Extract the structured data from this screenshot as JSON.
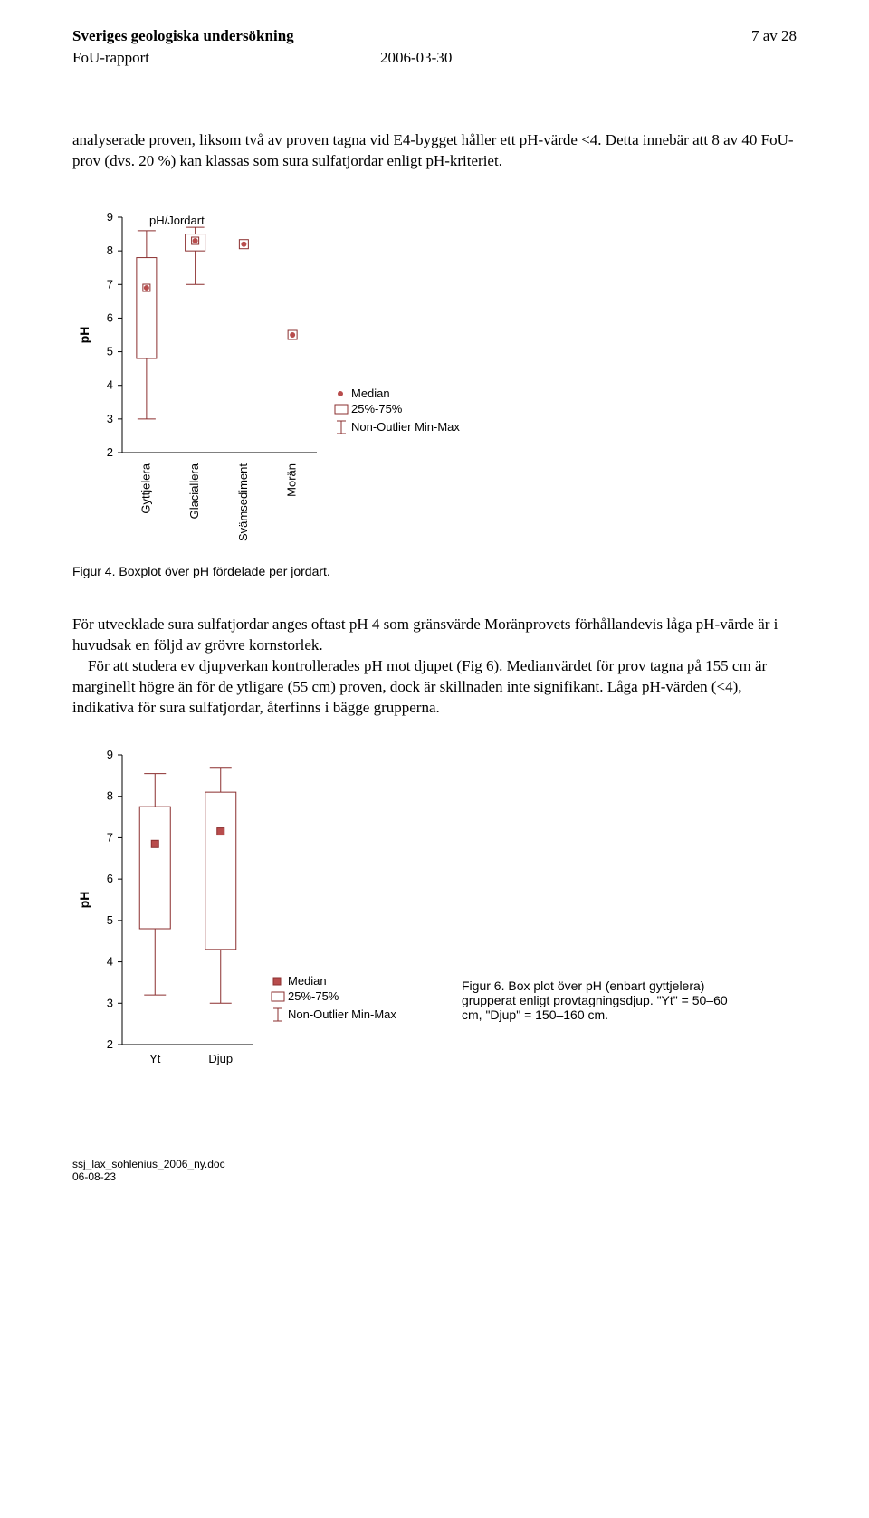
{
  "header": {
    "org": "Sveriges geologiska undersökning",
    "pagenum": "7 av 28",
    "report_type": "FoU-rapport",
    "date": "2006-03-30"
  },
  "para1": "analyserade proven, liksom två av proven tagna vid E4-bygget håller ett pH-värde <4. Detta innebär att 8 av 40 FoU-prov (dvs. 20 %) kan klassas som sura sulfatjordar enligt pH-kriteriet.",
  "chart1": {
    "title": "pH/Jordart",
    "ylabel": "pH",
    "ylim": [
      2,
      9
    ],
    "yticks": [
      2,
      3,
      4,
      5,
      6,
      7,
      8,
      9
    ],
    "categories": [
      "Gyttjelera",
      "Glaciallera",
      "Svämsediment",
      "Morän"
    ],
    "boxes": [
      {
        "min": 3.0,
        "q1": 4.8,
        "median": 6.9,
        "q3": 7.8,
        "max": 8.6
      },
      {
        "min": 7.0,
        "q1": 8.0,
        "median": 8.3,
        "q3": 8.5,
        "max": 8.7
      },
      {
        "outlier": 8.2
      },
      {
        "outlier": 5.5
      }
    ],
    "legend": [
      "Median",
      "25%-75%",
      "Non-Outlier Min-Max"
    ],
    "colors": {
      "stroke": "#8b2f2f",
      "markerFill": "#b84c4c",
      "boxFill": "none",
      "grid": "#ffffff"
    }
  },
  "caption1": "Figur 4. Boxplot över pH fördelade per jordart.",
  "para2": "För utvecklade sura sulfatjordar anges oftast pH 4 som gränsvärde Moränprovets förhållandevis låga pH-värde är i huvudsak en följd av grövre kornstorlek.",
  "para2indent": "    För att studera ev djupverkan kontrollerades pH mot djupet (Fig 6). Medianvärdet för prov tagna på 155 cm är marginellt högre än för de ytligare (55 cm) proven, dock är skillnaden inte signifikant. Låga pH-värden (<4), indikativa för sura sulfatjordar, återfinns i bägge grupperna.",
  "chart2": {
    "ylabel": "pH",
    "ylim": [
      2,
      9
    ],
    "yticks": [
      2,
      3,
      4,
      5,
      6,
      7,
      8,
      9
    ],
    "categories": [
      "Yt",
      "Djup"
    ],
    "boxes": [
      {
        "min": 3.2,
        "q1": 4.8,
        "median": 6.85,
        "q3": 7.75,
        "max": 8.55
      },
      {
        "min": 3.0,
        "q1": 4.3,
        "median": 7.15,
        "q3": 8.1,
        "max": 8.7
      }
    ],
    "legend": [
      "Median",
      "25%-75%",
      "Non-Outlier Min-Max"
    ],
    "colors": {
      "stroke": "#8b2f2f",
      "markerFill": "#b84c4c"
    }
  },
  "caption2": "Figur 6. Box plot över pH (enbart gyttjelera) grupperat enligt provtagningsdjup. \"Yt\" = 50–60 cm, \"Djup\" = 150–160 cm.",
  "footer": {
    "file": "ssj_lax_sohlenius_2006_ny.doc",
    "date": "06-08-23"
  }
}
